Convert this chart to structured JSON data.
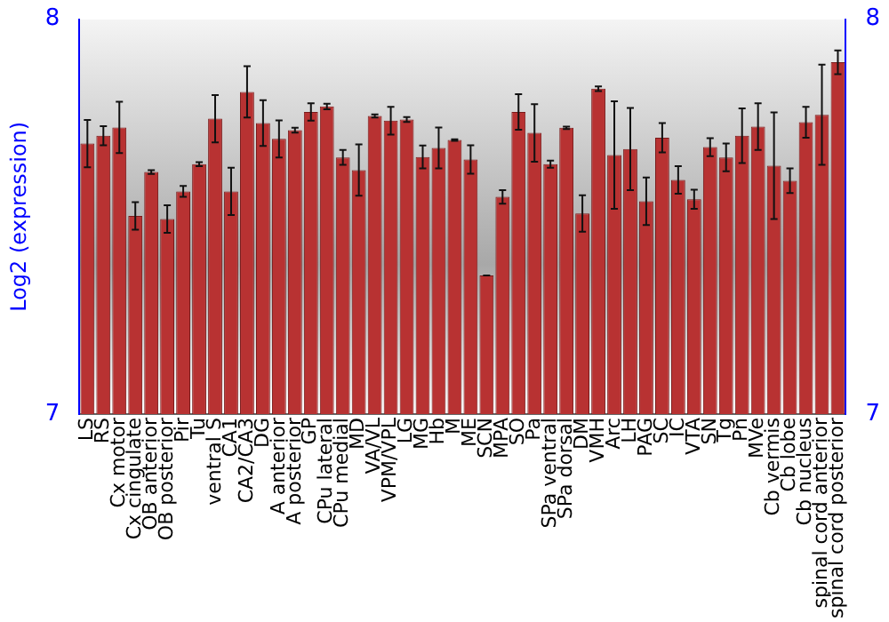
{
  "chart_data": {
    "type": "bar",
    "ylabel": "Log2 (expression)",
    "color": "#b83232",
    "grid": false,
    "legend": false,
    "categories": [
      "LS",
      "RS",
      "Cx motor",
      "Cx cingulate",
      "OB anterior",
      "OB posterior",
      "Pir",
      "Tu",
      "ventral S",
      "CA1",
      "CA2/CA3",
      "DG",
      "A anterior",
      "A posterior",
      "GP",
      "CPu lateral",
      "CPu medial",
      "MD",
      "VA/VL",
      "VPM/VPL",
      "LG",
      "MG",
      "Hb",
      "M",
      "ME",
      "SCN",
      "MPA",
      "SO",
      "Pa",
      "SPa ventral",
      "SPa dorsal",
      "DM",
      "VMH",
      "Arc",
      "LH",
      "PAG",
      "SC",
      "IC",
      "VTA",
      "SN",
      "Tg",
      "Pn",
      "MVe",
      "Cb vermis",
      "Cb lobe",
      "Cb nucleus",
      "spinal cord anterior",
      "spinal cord posterior"
    ],
    "values": [
      7.685,
      7.705,
      7.726,
      7.502,
      7.613,
      7.494,
      7.564,
      7.633,
      7.748,
      7.564,
      7.816,
      7.737,
      7.697,
      7.719,
      7.765,
      7.779,
      7.65,
      7.618,
      7.755,
      7.743,
      7.746,
      7.651,
      7.674,
      7.694,
      7.645,
      7.351,
      7.55,
      7.765,
      7.712,
      7.633,
      7.725,
      7.508,
      7.824,
      7.656,
      7.671,
      7.539,
      7.7,
      7.593,
      7.544,
      7.676,
      7.65,
      7.705,
      7.728,
      7.629,
      7.591,
      7.739,
      7.758,
      7.891
    ],
    "errors": [
      0.06,
      0.024,
      0.065,
      0.035,
      0.005,
      0.035,
      0.014,
      0.005,
      0.06,
      0.06,
      0.065,
      0.058,
      0.047,
      0.006,
      0.022,
      0.007,
      0.019,
      0.065,
      0.004,
      0.035,
      0.006,
      0.029,
      0.052,
      0.002,
      0.036,
      0,
      0.017,
      0.045,
      0.073,
      0.009,
      0.003,
      0.046,
      0.006,
      0.136,
      0.104,
      0.06,
      0.037,
      0.035,
      0.024,
      0.023,
      0.035,
      0.069,
      0.059,
      0.135,
      0.031,
      0.039,
      0.127,
      0.03
    ],
    "ylim": [
      7,
      8
    ],
    "yticks": [
      7,
      8
    ],
    "y2lim": [
      7,
      8
    ],
    "y2ticks": [
      7,
      8
    ]
  }
}
